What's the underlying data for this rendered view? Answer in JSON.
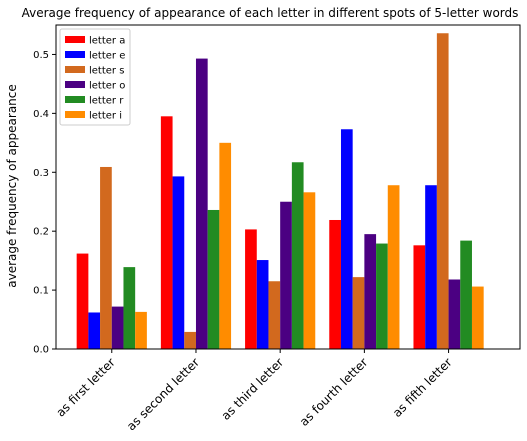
{
  "chart_data": {
    "type": "bar",
    "title": "Average frequency of appearance of each letter in different spots of 5-letter words",
    "xlabel": "",
    "ylabel": "average frequency of appearance",
    "ylim": [
      0,
      0.55
    ],
    "yticks": [
      "0.0",
      "0.1",
      "0.2",
      "0.3",
      "0.4",
      "0.5"
    ],
    "categories": [
      "as first letter",
      "as second letter",
      "as third letter",
      "as fourth letter",
      "as fifth letter"
    ],
    "legend_position": "top-left",
    "series": [
      {
        "name": "letter a",
        "color": "#ff0000",
        "values": [
          0.162,
          0.395,
          0.203,
          0.219,
          0.176
        ]
      },
      {
        "name": "letter e",
        "color": "#0000ff",
        "values": [
          0.062,
          0.293,
          0.151,
          0.373,
          0.278
        ]
      },
      {
        "name": "letter s",
        "color": "#d2691e",
        "values": [
          0.309,
          0.029,
          0.115,
          0.122,
          0.536
        ]
      },
      {
        "name": "letter o",
        "color": "#4b0082",
        "values": [
          0.072,
          0.493,
          0.25,
          0.195,
          0.118
        ]
      },
      {
        "name": "letter r",
        "color": "#228b22",
        "values": [
          0.139,
          0.236,
          0.317,
          0.179,
          0.184
        ]
      },
      {
        "name": "letter i",
        "color": "#ff8c00",
        "values": [
          0.063,
          0.35,
          0.266,
          0.278,
          0.106
        ]
      }
    ]
  }
}
